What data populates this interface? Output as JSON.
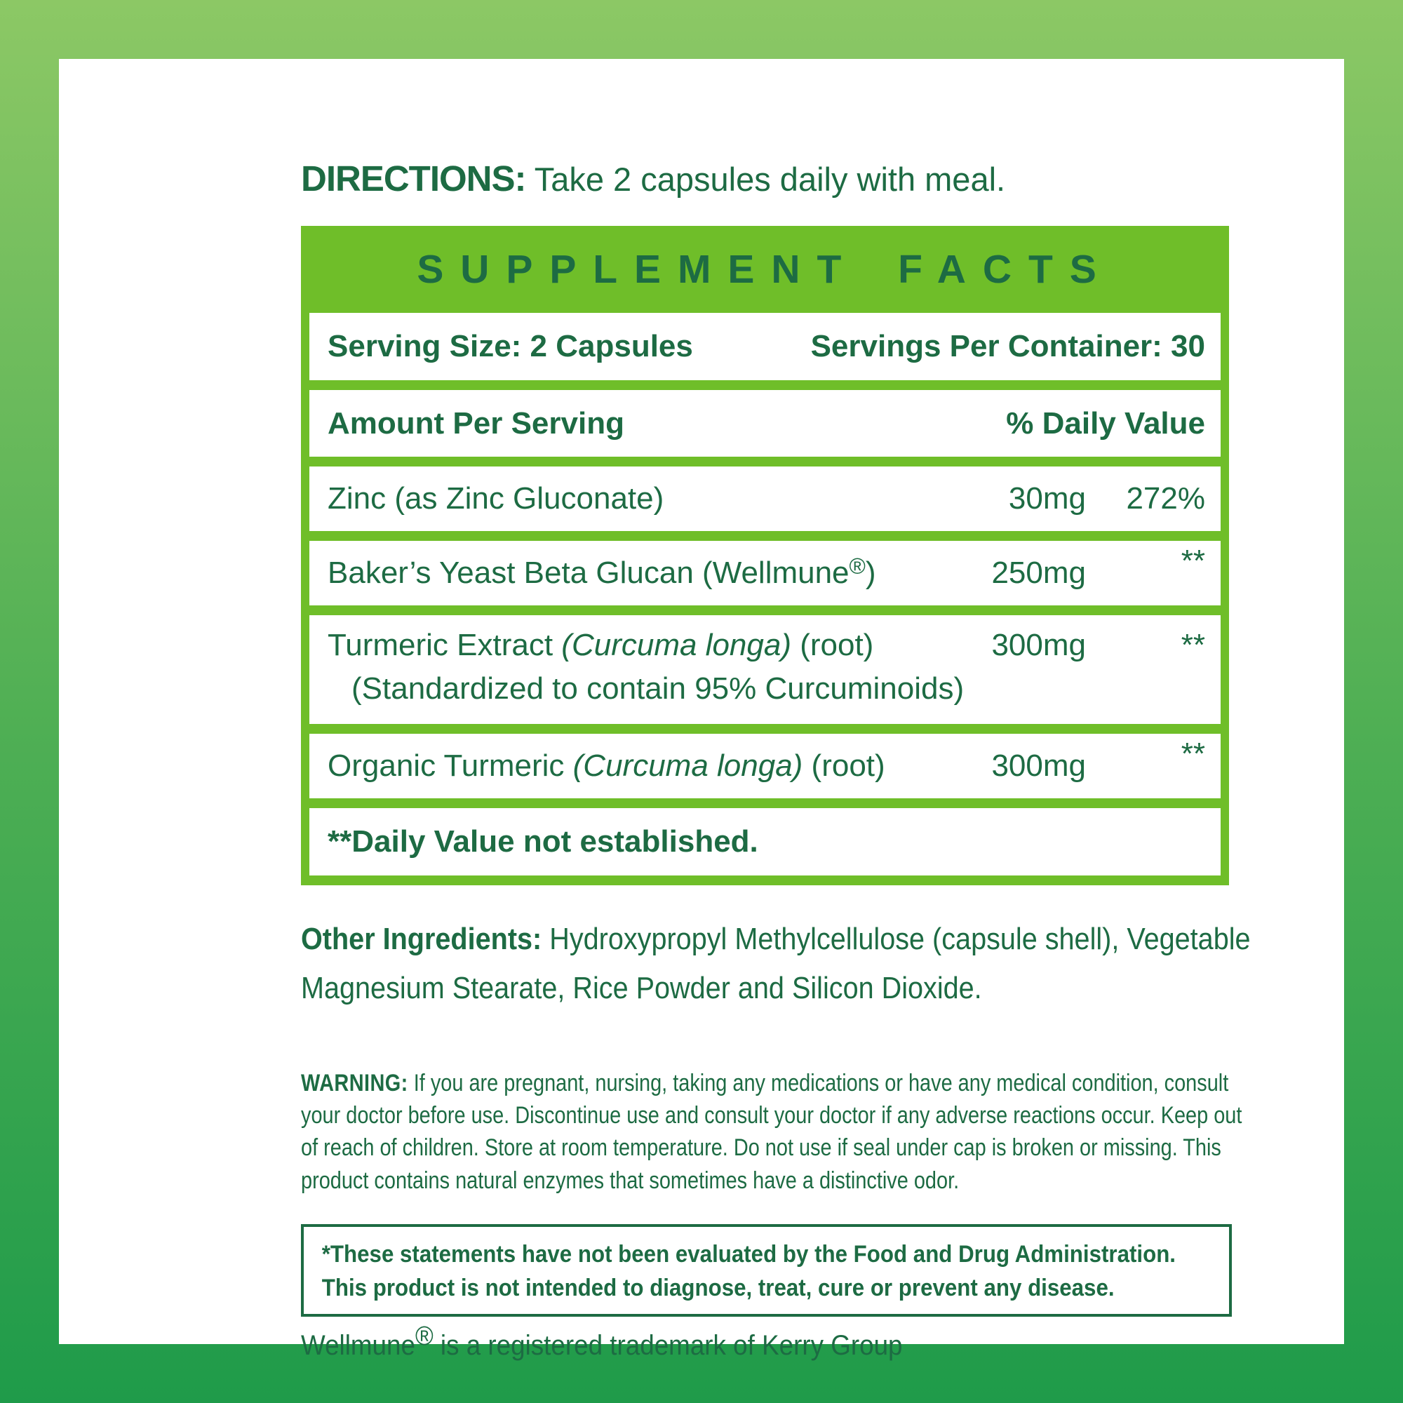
{
  "colors": {
    "bright_green": "#6FBE29",
    "dark_green": "#1D6B43",
    "frame_top": "#8CC865",
    "frame_mid": "#4FAF54",
    "frame_bottom": "#1F9B4A"
  },
  "directions": {
    "label": "DIRECTIONS:",
    "text": " Take 2 capsules daily with meal."
  },
  "supplement_facts": {
    "title": "SUPPLEMENT FACTS",
    "serving_size": "Serving Size: 2 Capsules",
    "servings_per_container": "Servings Per Container: 30",
    "col_amount": "Amount Per Serving",
    "col_daily_value": "% Daily Value",
    "nutrients": [
      {
        "name_parts": [
          {
            "t": "Zinc (as Zinc Gluconate)"
          }
        ],
        "amount": "30mg",
        "dv": "272%",
        "dv_raised": false
      },
      {
        "name_parts": [
          {
            "t": "Baker’s Yeast Beta Glucan (Wellmune"
          },
          {
            "t": "®",
            "sup": true
          },
          {
            "t": ")"
          }
        ],
        "amount": "250mg",
        "dv": "**",
        "dv_raised": true
      },
      {
        "name_parts": [
          {
            "t": "Turmeric Extract "
          },
          {
            "t": "(Curcuma longa)",
            "i": true
          },
          {
            "t": " (root)"
          }
        ],
        "sub": "(Standardized to contain 95% Curcuminoids)",
        "amount": "300mg",
        "dv": "**",
        "dv_raised": true
      },
      {
        "name_parts": [
          {
            "t": "Organic Turmeric "
          },
          {
            "t": "(Curcuma longa)",
            "i": true
          },
          {
            "t": " (root)"
          }
        ],
        "amount": "300mg",
        "dv": "**",
        "dv_raised": true
      }
    ],
    "footnote": "**Daily Value not established."
  },
  "other_ingredients": {
    "label": "Other Ingredients:",
    "text": " Hydroxypropyl Methylcellulose (capsule shell), Vegetable Magnesium Stearate, Rice Powder and Silicon Dioxide."
  },
  "warning": {
    "label": "WARNING:",
    "text": " If you are pregnant, nursing, taking any medications or have any medical condition, consult your doctor before use. Discontinue use and consult your doctor if any adverse reactions occur. Keep out of reach of children. Store at room temperature. Do not use if seal under cap is broken or missing. This product contains natural enzymes that sometimes have a distinctive odor."
  },
  "disclaimer": {
    "line1": "*These statements have not been evaluated by the Food and Drug Administration.",
    "line2": "This product is not intended to diagnose, treat, cure or prevent any disease."
  },
  "trademark": {
    "pre": "Wellmune",
    "reg": "®",
    "post": " is a registered trademark of Kerry Group"
  }
}
